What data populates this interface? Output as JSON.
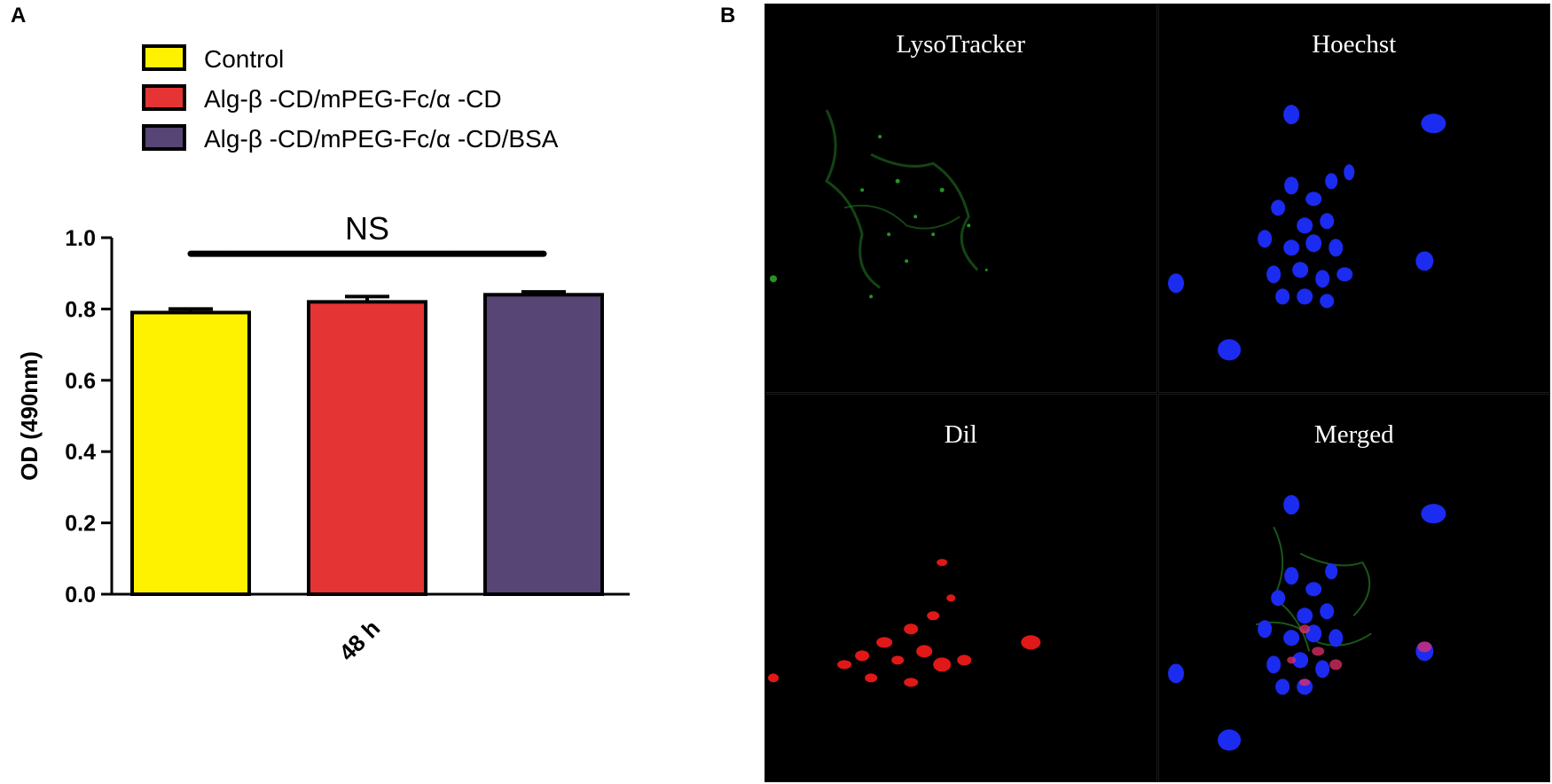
{
  "figure": {
    "panel_a_label": "A",
    "panel_b_label": "B"
  },
  "chart_data": {
    "type": "bar",
    "categories": [
      "48 h"
    ],
    "series": [
      {
        "name": "Control",
        "values": [
          0.79
        ],
        "error": [
          0.01
        ],
        "color": "#FFF200"
      },
      {
        "name": "Alg-β -CD/mPEG-Fc/α -CD",
        "values": [
          0.82
        ],
        "error": [
          0.015
        ],
        "color": "#E53434"
      },
      {
        "name": "Alg-β -CD/mPEG-Fc/α -CD/BSA",
        "values": [
          0.84
        ],
        "error": [
          0.008
        ],
        "color": "#564575"
      }
    ],
    "xlabel": "",
    "ylabel": "OD (490nm)",
    "ylim": [
      0.0,
      1.0
    ],
    "yticks": [
      "0.0",
      "0.2",
      "0.4",
      "0.6",
      "0.8",
      "1.0"
    ],
    "annotation": "NS",
    "legend_position": "top-left",
    "grid": false
  },
  "micrographs": {
    "tiles": [
      {
        "title": "LysoTracker",
        "stain": "green"
      },
      {
        "title": "Hoechst",
        "stain": "blue"
      },
      {
        "title": "Dil",
        "stain": "red"
      },
      {
        "title": "Merged",
        "stain": "merged"
      }
    ]
  }
}
